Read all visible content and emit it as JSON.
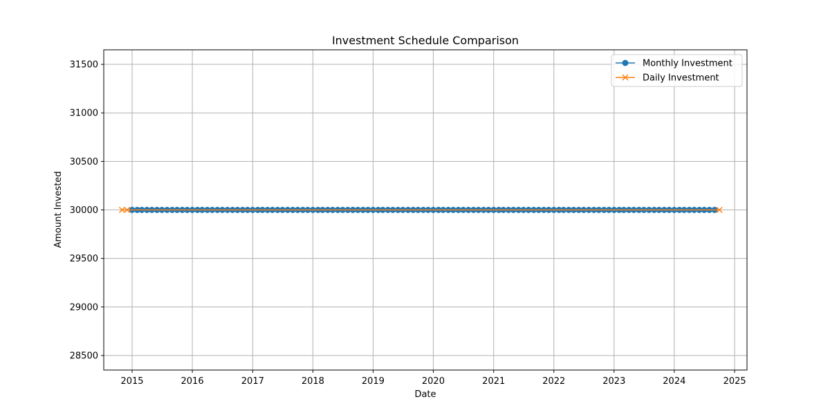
{
  "chart_data": {
    "type": "line",
    "title": "Investment Schedule Comparison",
    "xlabel": "Date",
    "ylabel": "Amount Invested",
    "x_ticks": [
      "2015",
      "2016",
      "2017",
      "2018",
      "2019",
      "2020",
      "2021",
      "2022",
      "2023",
      "2024",
      "2025"
    ],
    "y_ticks": [
      "28500",
      "29000",
      "29500",
      "30000",
      "30500",
      "31000",
      "31500"
    ],
    "xlim": [
      "2014-07-13",
      "2025-03-17"
    ],
    "ylim": [
      28350,
      31650
    ],
    "grid": true,
    "legend_position": "top-right",
    "series": [
      {
        "name": "Monthly Investment",
        "color": "#1f77b4",
        "marker": "circle",
        "start": "2015-01-01",
        "end": "2024-09-01",
        "frequency": "monthly",
        "value": 30000
      },
      {
        "name": "Daily Investment",
        "color": "#ff7f0e",
        "marker": "x",
        "dates": [
          "2014-11-01",
          "2014-12-01",
          "2024-10-01"
        ],
        "value": 30000
      }
    ]
  }
}
